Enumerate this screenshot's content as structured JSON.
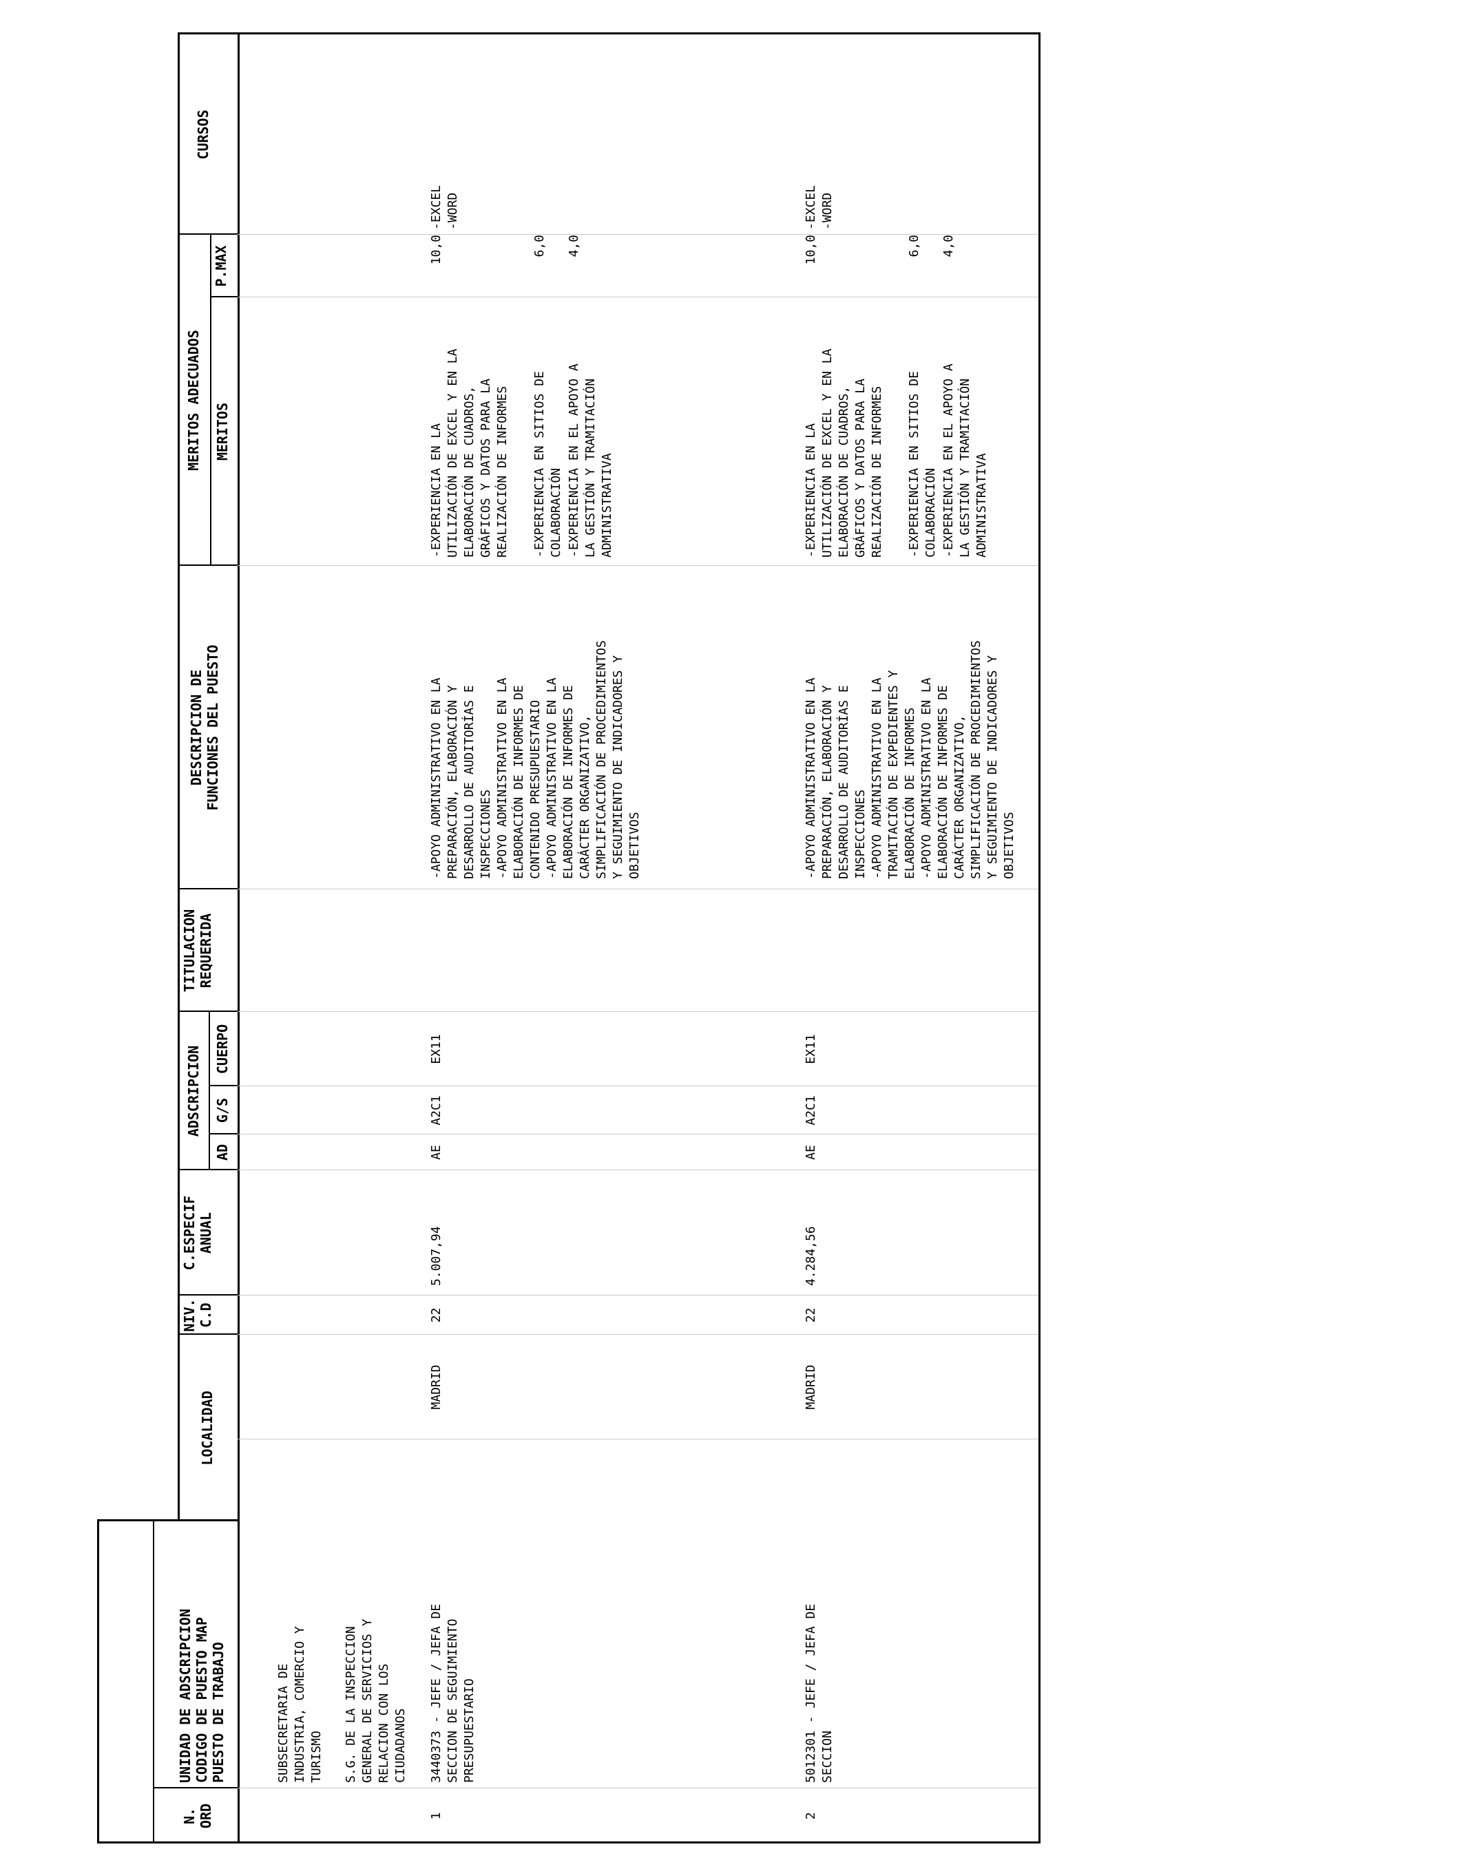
{
  "headers": {
    "n_ord": [
      "N.",
      "ORD"
    ],
    "unidad": [
      "UNIDAD DE ADSCRIPCION",
      "CODIGO DE PUESTO MAP",
      "PUESTO DE TRABAJO"
    ],
    "localidad": "LOCALIDAD",
    "niv": [
      "NIV.",
      "C.D"
    ],
    "c_especif": [
      "C.ESPECIF",
      "ANUAL"
    ],
    "adscripcion": "ADSCRIPCION",
    "ad": "AD",
    "gs": "G/S",
    "cuerpo": "CUERPO",
    "titulacion": [
      "TITULACION",
      "REQUERIDA"
    ],
    "descripcion": [
      "DESCRIPCION DE",
      "FUNCIONES DEL PUESTO"
    ],
    "meritos_adecuados": "MERITOS ADECUADOS",
    "meritos": "MERITOS",
    "pmax": "P.MAX",
    "cursos": "CURSOS"
  },
  "groups": [
    {
      "lines": [
        "SUBSECRETARIA DE",
        "INDUSTRIA, COMERCIO Y",
        "TURISMO"
      ]
    },
    {
      "lines": [
        "S.G. DE LA INSPECCION",
        "GENERAL DE SERVICIOS Y",
        "RELACION CON LOS",
        "CIUDADANOS"
      ]
    }
  ],
  "rows": [
    {
      "ord": "1",
      "puesto": [
        "3440373 - JEFE / JEFA DE",
        "SECCION DE SEGUIMIENTO",
        "PRESUPUESTARIO"
      ],
      "localidad": "MADRID",
      "niv": "22",
      "c_especif": "5.007,94",
      "ad": "AE",
      "gs": "A2C1",
      "cuerpo": "EX11",
      "titulacion": "",
      "descripcion": [
        "-APOYO ADMINISTRATIVO EN LA",
        "PREPARACIÓN, ELABORACIÓN Y",
        "DESARROLLO DE AUDITORÍAS E",
        "INSPECCIONES",
        "-APOYO ADMINISTRATIVO EN LA",
        "ELABORACIÓN DE INFORMES DE",
        "CONTENIDO PRESUPUESTARIO",
        "-APOYO ADMINISTRATIVO EN LA",
        "ELABORACIÓN DE INFORMES DE",
        "CARÁCTER ORGANIZATIVO,",
        "SIMPLIFICACIÓN DE PROCEDIMIENTOS",
        "Y SEGUIMIENTO DE INDICADORES Y",
        "OBJETIVOS"
      ],
      "meritos": [
        {
          "pmax": "10,0",
          "lines": [
            "-EXPERIENCIA EN LA",
            "UTILIZACIÓN DE EXCEL Y EN LA",
            "ELABORACIÓN DE CUADROS,",
            "GRÁFICOS Y DATOS PARA LA",
            "REALIZACIÓN DE INFORMES"
          ]
        },
        {
          "pmax": "6,0",
          "lines": [
            "-EXPERIENCIA EN SITIOS DE",
            "COLABORACIÓN"
          ]
        },
        {
          "pmax": "4,0",
          "lines": [
            "-EXPERIENCIA EN EL APOYO A",
            "LA GESTIÓN Y TRAMITACIÓN",
            "ADMINISTRATIVA"
          ]
        }
      ],
      "cursos": [
        "-EXCEL",
        "-WORD"
      ]
    },
    {
      "ord": "2",
      "puesto": [
        "5012301 - JEFE / JEFA DE",
        "SECCION"
      ],
      "localidad": "MADRID",
      "niv": "22",
      "c_especif": "4.284,56",
      "ad": "AE",
      "gs": "A2C1",
      "cuerpo": "EX11",
      "titulacion": "",
      "descripcion": [
        "-APOYO ADMINISTRATIVO EN LA",
        "PREPARACIÓN, ELABORACIÓN Y",
        "DESARROLLO DE AUDITORÍAS E",
        "INSPECCIONES",
        "-APOYO ADMINISTRATIVO EN LA",
        "TRAMITACIÓN DE EXPEDIENTES Y",
        "ELABORACIÓN DE INFORMES",
        "-APOYO ADMINISTRATIVO EN LA",
        "ELABORACIÓN DE INFORMES DE",
        "CARÁCTER ORGANIZATIVO,",
        "SIMPLIFICACIÓN DE PROCEDIMIENTOS",
        "Y SEGUIMIENTO DE INDICADORES Y",
        "OBJETIVOS"
      ],
      "meritos": [
        {
          "pmax": "10,0",
          "lines": [
            "-EXPERIENCIA EN LA",
            "UTILIZACIÓN DE EXCEL Y EN LA",
            "ELABORACIÓN DE CUADROS,",
            "GRÁFICOS Y DATOS PARA LA",
            "REALIZACIÓN DE INFORMES"
          ]
        },
        {
          "pmax": "6,0",
          "lines": [
            "-EXPERIENCIA EN SITIOS DE",
            "COLABORACIÓN"
          ]
        },
        {
          "pmax": "4,0",
          "lines": [
            "-EXPERIENCIA EN EL APOYO A",
            "LA GESTIÓN Y TRAMITACIÓN",
            "ADMINISTRATIVA"
          ]
        }
      ],
      "cursos": [
        "-EXCEL",
        "-WORD"
      ]
    }
  ]
}
